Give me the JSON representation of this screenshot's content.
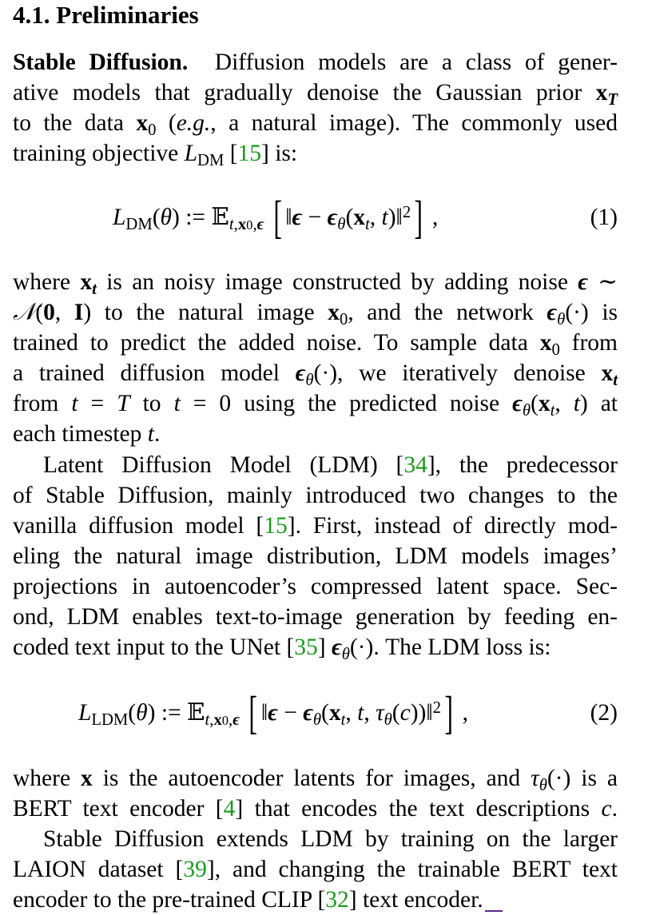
{
  "section": {
    "number": "4.1.",
    "title": "Preliminaries"
  },
  "p1": {
    "runin": "Stable Diffusion.",
    "l1": "Diffusion models are a class of gener-",
    "l2a": "ative models that gradually denoise the Gaussian prior ",
    "l3a": "to the data ",
    "l3b": " (",
    "l3c": "e.g.",
    "l3d": ", a natural image). The commonly used",
    "l4a": "training objective ",
    "l4b": " [",
    "l4c": "15",
    "l4d": "] is:"
  },
  "eq1": {
    "number": "(1)"
  },
  "p2": {
    "l1a": "where ",
    "l1b": " is an noisy image constructed by adding noise ",
    "l2a": " to the natural image ",
    "l2b": ", and the network ",
    "l2c": " is",
    "l3a": "trained to predict the added noise. To sample data ",
    "l3b": " from",
    "l4a": "a trained diffusion model ",
    "l4b": ", we iteratively denoise ",
    "l5a": "from ",
    "l5b": " to ",
    "l5c": " using the predicted noise ",
    "l5d": " at",
    "l6a": "each timestep ",
    "l6b": "."
  },
  "p3": {
    "l1a": "Latent Diffusion Model (LDM) [",
    "l1b": "34",
    "l1c": "], the predecessor",
    "l2": "of Stable Diffusion, mainly introduced two changes to the",
    "l3a": "vanilla diffusion model [",
    "l3b": "15",
    "l3c": "]. First, instead of directly mod-",
    "l4": "eling the natural image distribution, LDM models images’",
    "l5": "projections in autoencoder’s compressed latent space. Sec-",
    "l6": "ond, LDM enables text-to-image generation by feeding en-",
    "l7a": "coded text input to the UNet [",
    "l7b": "35",
    "l7c": "] ",
    "l7d": ". The LDM loss is:"
  },
  "eq2": {
    "number": "(2)"
  },
  "p4": {
    "l1a": "where ",
    "l1b": " is the autoencoder latents for images, and ",
    "l1c": " is a",
    "l2a": "BERT text encoder [",
    "l2b": "4",
    "l2c": "] that encodes the text descriptions ",
    "l2d": "."
  },
  "p5": {
    "l1": "Stable Diffusion extends LDM by training on the larger",
    "l2a": "LAION dataset [",
    "l2b": "39",
    "l2c": "], and changing the trainable BERT text",
    "l3a": "encoder to the pre-trained CLIP [",
    "l3b": "32",
    "l3c": "] text encoder."
  },
  "colors": {
    "text": "#000000",
    "citation": "#1a9b1a",
    "end-mark": "#5b2a8a"
  }
}
